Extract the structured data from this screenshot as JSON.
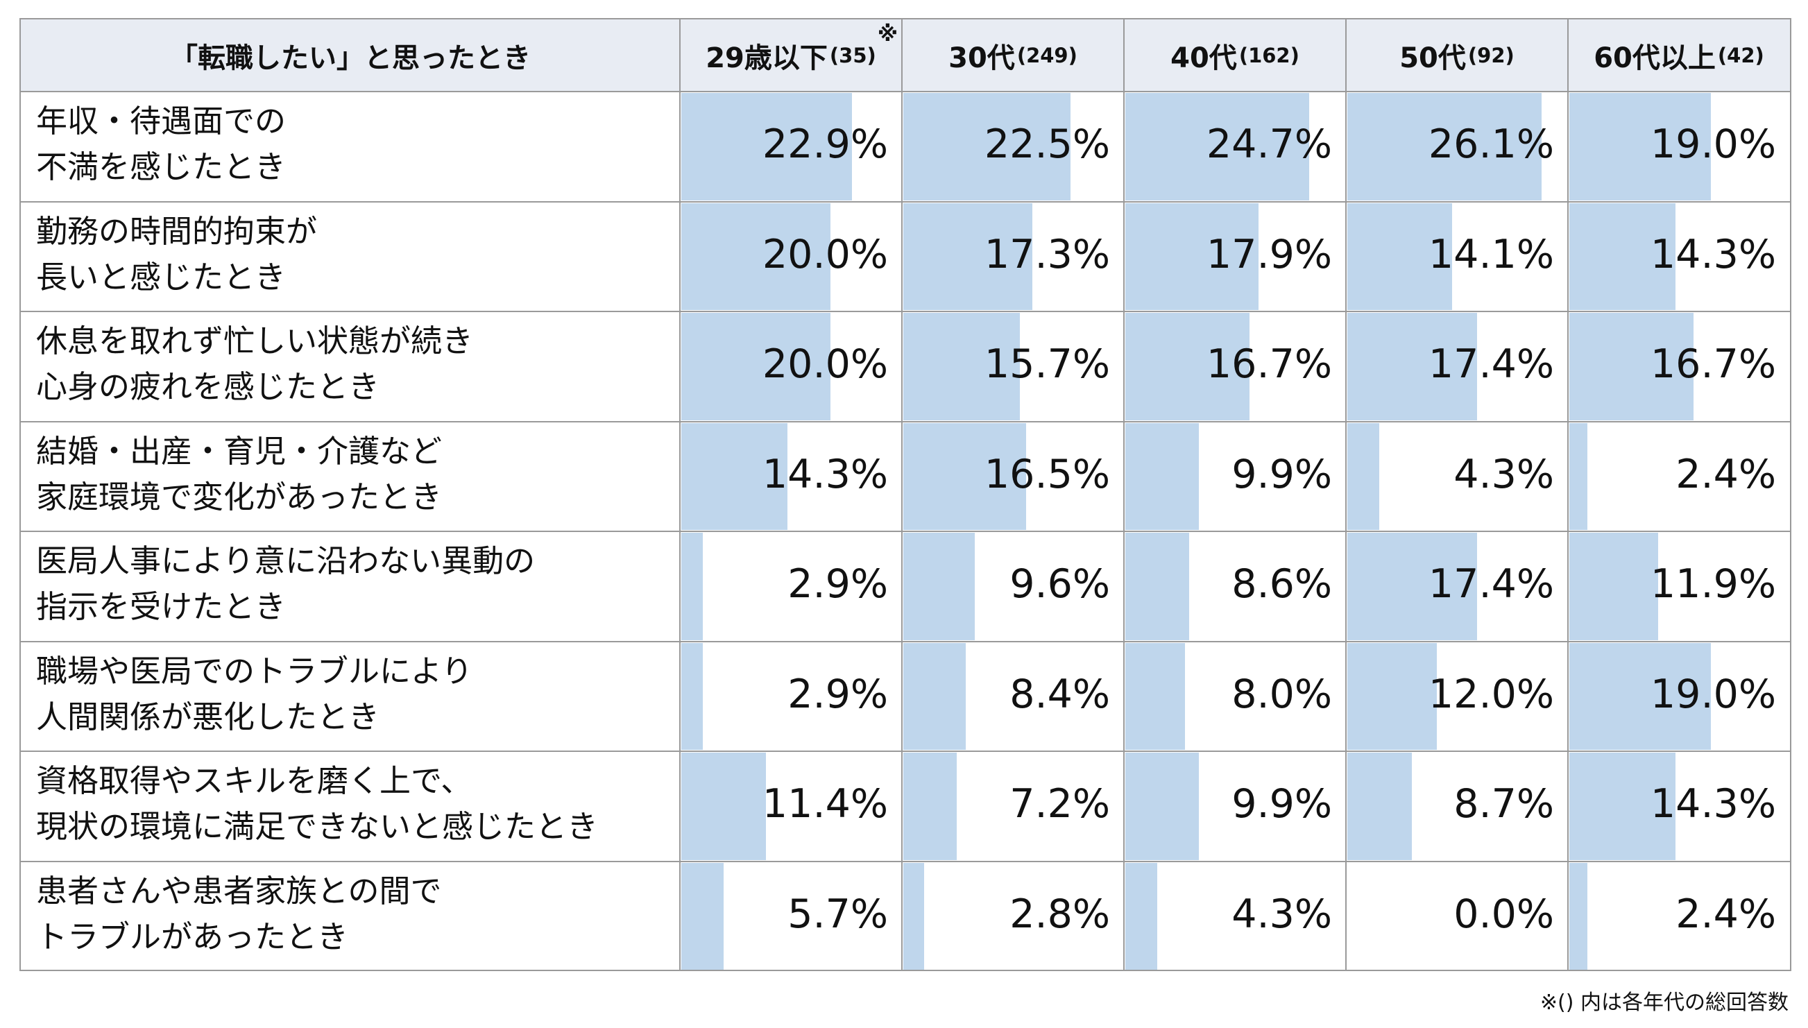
{
  "header": {
    "question": "「転職したい」と思ったとき",
    "columns": [
      {
        "label": "29歳以下",
        "count": "(35)",
        "note_mark": "※"
      },
      {
        "label": "30代",
        "count": "(249)"
      },
      {
        "label": "40代",
        "count": "(162)"
      },
      {
        "label": "50代",
        "count": "(92)"
      },
      {
        "label": "60代以上",
        "count": "(42)"
      }
    ]
  },
  "rows": [
    {
      "line1": "年収・待遇面での",
      "line2": "不満を感じたとき",
      "values": [
        "22.9%",
        "22.5%",
        "24.7%",
        "26.1%",
        "19.0%"
      ]
    },
    {
      "line1": "勤務の時間的拘束が",
      "line2": "長いと感じたとき",
      "values": [
        "20.0%",
        "17.3%",
        "17.9%",
        "14.1%",
        "14.3%"
      ]
    },
    {
      "line1": "休息を取れず忙しい状態が続き",
      "line2": "心身の疲れを感じたとき",
      "values": [
        "20.0%",
        "15.7%",
        "16.7%",
        "17.4%",
        "16.7%"
      ]
    },
    {
      "line1": "結婚・出産・育児・介護など",
      "line2": "家庭環境で変化があったとき",
      "values": [
        "14.3%",
        "16.5%",
        "9.9%",
        "4.3%",
        "2.4%"
      ]
    },
    {
      "line1": "医局人事により意に沿わない異動の",
      "line2": "指示を受けたとき",
      "values": [
        "2.9%",
        "9.6%",
        "8.6%",
        "17.4%",
        "11.9%"
      ]
    },
    {
      "line1": "職場や医局でのトラブルにより",
      "line2": "人間関係が悪化したとき",
      "values": [
        "2.9%",
        "8.4%",
        "8.0%",
        "12.0%",
        "19.0%"
      ]
    },
    {
      "line1": "資格取得やスキルを磨く上で、",
      "line2": "現状の環境に満足できないと感じたとき",
      "values": [
        "11.4%",
        "7.2%",
        "9.9%",
        "8.7%",
        "14.3%"
      ]
    },
    {
      "line1": "患者さんや患者家族との間で",
      "line2": "トラブルがあったとき",
      "values": [
        "5.7%",
        "2.8%",
        "4.3%",
        "0.0%",
        "2.4%"
      ]
    }
  ],
  "footnote": "※() 内は各年代の総回答数",
  "colors": {
    "bar": "#bfd6ec",
    "header_bg": "#e8ecf3",
    "grid": "#9a9a9a"
  },
  "chart_data": {
    "type": "table",
    "categories": [
      "29歳以下",
      "30代",
      "40代",
      "50代",
      "60代以上"
    ],
    "respondents": [
      35,
      249,
      162,
      92,
      42
    ],
    "bar_scale_max_percent": 26.1,
    "series": [
      {
        "name": "年収・待遇面での不満を感じたとき",
        "values": [
          22.9,
          22.5,
          24.7,
          26.1,
          19.0
        ]
      },
      {
        "name": "勤務の時間的拘束が長いと感じたとき",
        "values": [
          20.0,
          17.3,
          17.9,
          14.1,
          14.3
        ]
      },
      {
        "name": "休息を取れず忙しい状態が続き心身の疲れを感じたとき",
        "values": [
          20.0,
          15.7,
          16.7,
          17.4,
          16.7
        ]
      },
      {
        "name": "結婚・出産・育児・介護など家庭環境で変化があったとき",
        "values": [
          14.3,
          16.5,
          9.9,
          4.3,
          2.4
        ]
      },
      {
        "name": "医局人事により意に沿わない異動の指示を受けたとき",
        "values": [
          2.9,
          9.6,
          8.6,
          17.4,
          11.9
        ]
      },
      {
        "name": "職場や医局でのトラブルにより人間関係が悪化したとき",
        "values": [
          2.9,
          8.4,
          8.0,
          12.0,
          19.0
        ]
      },
      {
        "name": "資格取得やスキルを磨く上で、現状の環境に満足できないと感じたとき",
        "values": [
          11.4,
          7.2,
          9.9,
          8.7,
          14.3
        ]
      },
      {
        "name": "患者さんや患者家族との間でトラブルがあったとき",
        "values": [
          5.7,
          2.8,
          4.3,
          0.0,
          2.4
        ]
      }
    ]
  }
}
